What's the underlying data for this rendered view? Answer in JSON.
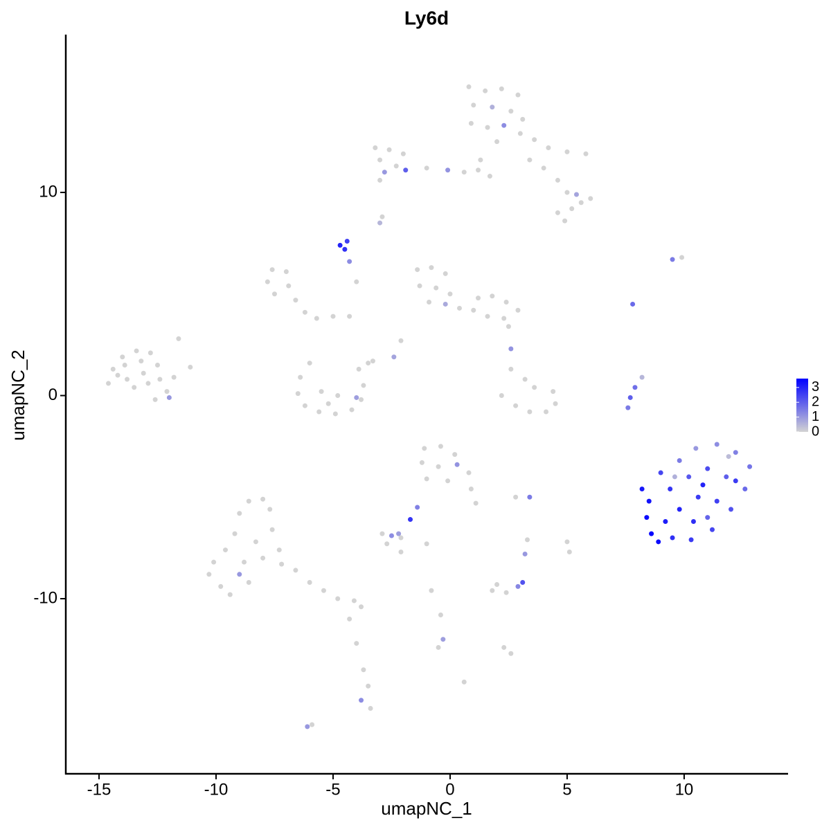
{
  "chart_data": {
    "type": "scatter",
    "title": "Ly6d",
    "x_label": "umapNC_1",
    "y_label": "umapNC_2",
    "x": [
      0.8,
      1.5,
      2.2,
      2.9,
      1.0,
      1.8,
      2.6,
      3.1,
      0.9,
      1.6,
      2.3,
      3.0,
      2.0,
      3.6,
      4.2,
      5.0,
      5.8,
      1.3,
      1.2,
      1.7,
      4.6,
      5.0,
      5.6,
      6.0,
      5.2,
      4.6,
      4.9,
      5.4,
      4.0,
      3.4,
      -3.2,
      -2.6,
      -2.0,
      -3.0,
      -2.3,
      -1.9,
      -2.8,
      -3.0,
      -1.0,
      -0.1,
      0.6,
      -2.9,
      -3.0,
      -4.7,
      -4.5,
      -4.4,
      -4.3,
      -4.0,
      9.5,
      9.9,
      -7.6,
      -7.0,
      -7.8,
      -6.9,
      -7.5,
      -6.6,
      -6.2,
      -5.7,
      -5.0,
      -4.3,
      -1.4,
      -0.8,
      -0.2,
      -1.3,
      -0.6,
      0.0,
      -0.9,
      -0.2,
      0.4,
      1.0,
      1.2,
      1.8,
      2.4,
      2.9,
      2.3,
      1.6,
      2.5,
      -2.1,
      -2.4,
      -3.5,
      -14.4,
      -14.0,
      -13.4,
      -12.8,
      -13.8,
      -13.1,
      -12.5,
      -14.6,
      -13.5,
      -12.4,
      -12.1,
      -12.0,
      -11.6,
      -11.1,
      -11.8,
      -13.9,
      -12.9,
      -13.2,
      -14.2,
      -12.6,
      -6.4,
      -6.5,
      -6.2,
      -5.6,
      -4.9,
      -4.2,
      -3.8,
      -3.7,
      -3.9,
      -4.8,
      -5.5,
      -6.0,
      -4.0,
      -3.3,
      -5.2,
      2.6,
      3.2,
      3.6,
      2.2,
      2.8,
      3.4,
      4.1,
      4.5,
      4.4,
      2.6,
      -1.1,
      -0.4,
      0.2,
      -1.2,
      -0.5,
      0.3,
      0.8,
      -1.0,
      -0.1,
      0.9,
      1.1,
      -1.4,
      -1.7,
      2.8,
      3.4,
      -2.9,
      -2.5,
      -2.1,
      -2.7,
      -2.2,
      -1.0,
      3.2,
      5.0,
      5.1,
      3.3,
      8.2,
      8.5,
      8.4,
      8.6,
      8.9,
      9.5,
      10.3,
      11.2,
      12.0,
      12.6,
      12.8,
      12.2,
      11.4,
      10.5,
      9.8,
      9.0,
      9.4,
      10.2,
      11.0,
      11.8,
      10.6,
      9.8,
      11.4,
      10.4,
      9.2,
      11.0,
      12.2,
      9.6,
      11.9,
      10.8,
      -10.1,
      -10.3,
      -9.8,
      -9.4,
      -9.6,
      -9.2,
      -9.0,
      -8.6,
      -8.0,
      -7.7,
      -7.6,
      -8.3,
      -8.8,
      -8.0,
      -7.3,
      -8.6,
      -9.0,
      -7.2,
      -6.6,
      -6.0,
      -5.4,
      -4.8,
      -4.1,
      -3.8,
      -4.3,
      -4.0,
      -3.7,
      -3.5,
      -3.8,
      -3.4,
      7.8,
      7.7,
      7.9,
      8.2,
      7.6,
      -6.1,
      -5.9,
      1.8,
      2.4,
      2.9,
      3.1,
      2.0,
      2.3,
      2.6,
      -0.8,
      -0.4,
      -0.3,
      -0.5,
      0.6,
      -2.1
    ],
    "y": [
      15.2,
      15.0,
      15.1,
      14.8,
      14.3,
      14.2,
      14.0,
      13.6,
      13.4,
      13.2,
      13.3,
      12.9,
      12.5,
      12.6,
      12.2,
      12.0,
      11.9,
      11.6,
      11.1,
      10.8,
      10.6,
      10.0,
      9.5,
      9.7,
      9.2,
      9.0,
      8.6,
      9.9,
      11.2,
      11.6,
      12.2,
      12.1,
      11.9,
      11.6,
      11.3,
      11.1,
      11.0,
      10.6,
      11.2,
      11.1,
      11.0,
      8.8,
      8.5,
      7.4,
      7.2,
      7.6,
      6.6,
      5.6,
      6.7,
      6.8,
      6.2,
      6.1,
      5.6,
      5.4,
      5.0,
      4.7,
      4.1,
      3.8,
      3.9,
      3.9,
      6.2,
      6.3,
      6.0,
      5.4,
      5.3,
      5.0,
      4.6,
      4.5,
      4.3,
      4.2,
      4.8,
      4.9,
      4.6,
      4.2,
      3.8,
      3.9,
      3.4,
      2.7,
      1.9,
      1.6,
      1.3,
      1.9,
      2.2,
      2.1,
      0.8,
      1.1,
      1.5,
      0.6,
      0.4,
      0.8,
      0.2,
      -0.1,
      2.8,
      1.4,
      0.9,
      1.5,
      0.6,
      1.7,
      1.0,
      -0.2,
      0.9,
      0.1,
      -0.5,
      -0.8,
      -0.9,
      -0.7,
      -0.2,
      0.5,
      1.3,
      0.0,
      0.2,
      1.6,
      -0.1,
      1.7,
      -0.4,
      1.3,
      0.8,
      0.4,
      0.0,
      -0.5,
      -0.8,
      -0.8,
      -0.4,
      0.2,
      2.3,
      -2.6,
      -2.5,
      -2.9,
      -3.3,
      -3.5,
      -3.4,
      -3.8,
      -4.1,
      -4.2,
      -4.6,
      -5.3,
      -5.5,
      -6.1,
      -5.0,
      -5.0,
      -6.8,
      -6.9,
      -7.0,
      -7.3,
      -6.8,
      -7.3,
      -7.8,
      -7.2,
      -7.7,
      -7.1,
      -4.6,
      -5.2,
      -6.0,
      -6.8,
      -7.2,
      -7.0,
      -7.1,
      -6.6,
      -5.6,
      -4.6,
      -3.5,
      -2.8,
      -2.4,
      -2.6,
      -3.2,
      -3.8,
      -4.6,
      -4.0,
      -3.6,
      -4.0,
      -5.0,
      -5.6,
      -5.2,
      -6.2,
      -6.2,
      -6.0,
      -4.2,
      -4.0,
      -3.0,
      -4.4,
      -8.2,
      -8.8,
      -9.4,
      -9.8,
      -7.6,
      -6.8,
      -5.8,
      -5.2,
      -5.1,
      -5.6,
      -6.6,
      -7.2,
      -8.2,
      -8.0,
      -7.6,
      -9.2,
      -8.8,
      -8.3,
      -8.6,
      -9.2,
      -9.6,
      -10.0,
      -10.1,
      -10.4,
      -11.0,
      -12.2,
      -13.5,
      -14.3,
      -15.0,
      -15.4,
      4.5,
      -0.1,
      0.4,
      0.9,
      -0.6,
      -16.3,
      -16.2,
      -9.6,
      -9.7,
      -9.4,
      -9.2,
      -9.3,
      -12.4,
      -12.7,
      -9.6,
      -10.8,
      -12.0,
      -12.4,
      -14.1,
      -7.7
    ],
    "values": [
      0,
      0,
      0,
      0,
      0,
      0.6,
      0,
      0,
      0,
      0,
      1.2,
      0,
      0,
      0,
      0,
      0,
      0,
      0,
      0,
      0,
      0,
      0,
      0,
      0,
      0,
      0,
      0,
      0.8,
      0,
      0,
      0,
      0,
      0,
      0,
      0,
      2.0,
      1.0,
      0,
      0,
      1.1,
      0,
      0,
      0.5,
      3.0,
      2.8,
      2.5,
      1.2,
      0,
      1.5,
      0,
      0,
      0,
      0,
      0,
      0,
      0,
      0,
      0,
      0,
      0,
      0,
      0,
      0,
      0,
      0,
      0,
      0,
      0.7,
      0,
      0,
      0,
      0,
      0,
      0,
      0,
      0,
      0,
      0,
      0.8,
      0,
      0,
      0,
      0,
      0,
      0,
      0,
      0,
      0,
      0,
      0,
      0,
      1.0,
      0,
      0,
      0,
      0,
      0,
      0,
      0,
      0,
      0,
      0,
      0,
      0,
      0,
      0,
      0,
      0,
      0,
      0,
      0,
      0,
      0.9,
      0,
      0,
      0,
      0,
      0,
      0,
      0,
      0,
      0,
      0,
      0,
      1.1,
      0,
      0,
      0,
      0,
      0,
      1.1,
      0,
      0,
      0,
      0,
      0,
      1.4,
      2.7,
      0,
      1.5,
      0,
      1.2,
      0,
      0,
      0.9,
      0,
      1.0,
      0,
      0,
      0,
      3.2,
      3.3,
      3.4,
      3.5,
      3.4,
      2.8,
      2.6,
      2.4,
      2.2,
      1.8,
      1.6,
      1.4,
      1.2,
      1.0,
      1.5,
      2.4,
      2.7,
      2.1,
      2.3,
      2.0,
      2.6,
      3.0,
      2.5,
      2.8,
      3.1,
      1.9,
      2.6,
      0.6,
      0.4,
      3.0,
      0,
      0,
      0,
      0,
      0,
      0,
      0,
      0,
      0,
      0,
      0,
      0,
      0,
      0,
      0,
      0,
      1.0,
      0,
      0,
      0,
      0,
      0,
      0,
      0,
      0,
      0,
      0,
      0,
      1.2,
      0,
      1.8,
      2.0,
      1.7,
      0.5,
      1.5,
      1.0,
      0,
      0,
      0,
      1.3,
      2.2,
      0,
      0,
      0,
      0,
      0,
      0.9,
      0,
      0,
      0
    ],
    "xlim": [
      -16.42,
      14.44
    ],
    "ylim": [
      -18.62,
      17.77
    ],
    "xticks": [
      -15,
      -10,
      -5,
      0,
      5,
      10
    ],
    "yticks": [
      -10,
      0,
      10
    ],
    "color_low": "#d3d3d3",
    "color_high": "#0000ff",
    "clim": [
      0,
      3.6
    ],
    "colorbar_ticks": [
      0,
      1,
      2,
      3
    ]
  }
}
